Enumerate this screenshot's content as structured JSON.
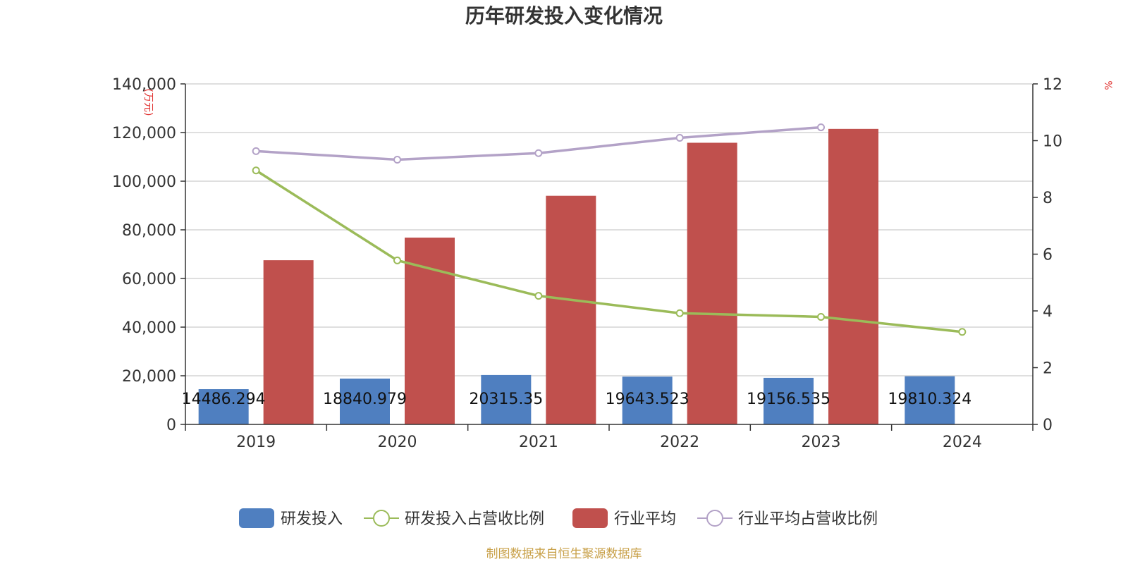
{
  "chart_data": {
    "type": "bar",
    "title": "历年研发投入变化情况",
    "categories": [
      "2019",
      "2020",
      "2021",
      "2022",
      "2023",
      "2024"
    ],
    "y_left": {
      "unit_label": "(万元)",
      "range": [
        0,
        140000
      ],
      "ticks": [
        0,
        20000,
        40000,
        60000,
        80000,
        100000,
        120000,
        140000
      ],
      "tick_labels": [
        "0",
        "20,000",
        "40,000",
        "60,000",
        "80,000",
        "100,000",
        "120,000",
        "140,000"
      ]
    },
    "y_right": {
      "unit_label": "%",
      "range": [
        0,
        12
      ],
      "ticks": [
        0,
        2,
        4,
        6,
        8,
        10,
        12
      ],
      "tick_labels": [
        "0",
        "2",
        "4",
        "6",
        "8",
        "10",
        "12"
      ]
    },
    "series": [
      {
        "name": "研发投入",
        "kind": "bar",
        "axis": "left",
        "color": "#4f7fc0",
        "values": [
          14486.294,
          18840.979,
          20315.35,
          19643.523,
          19156.535,
          19810.324
        ],
        "labels": [
          "14486.294",
          "18840.979",
          "20315.35",
          "19643.523",
          "19156.535",
          "19810.324"
        ]
      },
      {
        "name": "研发投入占营收比例",
        "kind": "line",
        "axis": "right",
        "color": "#9bbb59",
        "values": [
          8.95,
          5.78,
          4.53,
          3.92,
          3.79,
          3.26
        ]
      },
      {
        "name": "行业平均",
        "kind": "bar",
        "axis": "left",
        "color": "#c0504d",
        "values": [
          67500,
          76800,
          94000,
          115800,
          121500,
          null
        ]
      },
      {
        "name": "行业平均占营收比例",
        "kind": "line",
        "axis": "right",
        "color": "#b3a2c7",
        "values": [
          9.63,
          9.33,
          9.56,
          10.1,
          10.47,
          null
        ]
      }
    ],
    "grid": true,
    "legend_position": "bottom",
    "colors": {
      "axis": "#333333",
      "grid": "#cccccc",
      "unit_label": "#e0302e",
      "source": "#c8a048"
    }
  },
  "footer": {
    "source": "制图数据来自恒生聚源数据库"
  }
}
